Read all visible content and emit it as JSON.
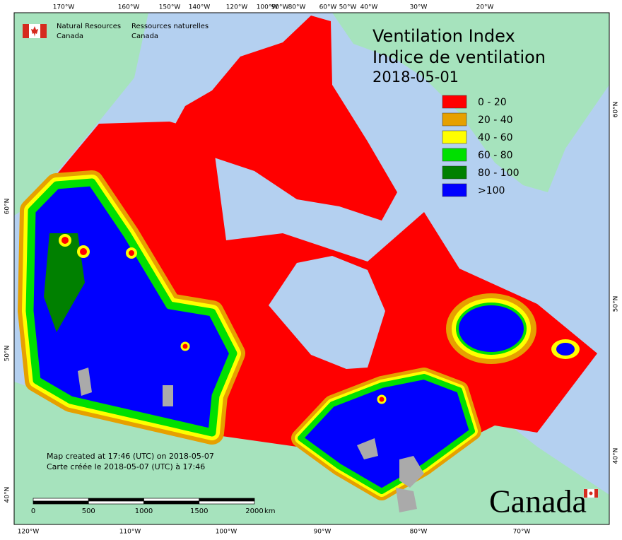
{
  "header": {
    "agency_en": "Natural Resources",
    "agency_en_2": "Canada",
    "agency_fr": "Ressources naturelles",
    "agency_fr_2": "Canada"
  },
  "title": {
    "line1": "Ventilation Index",
    "line2": "Indice de ventilation",
    "date": "2018-05-01"
  },
  "legend": [
    {
      "label": "0 - 20",
      "color": "#ff0000"
    },
    {
      "label": "20 - 40",
      "color": "#e6a000"
    },
    {
      "label": "40 - 60",
      "color": "#ffff00"
    },
    {
      "label": "60 - 80",
      "color": "#00e000"
    },
    {
      "label": "80 - 100",
      "color": "#008000"
    },
    {
      "label": ">100",
      "color": "#0000ff"
    }
  ],
  "credits": {
    "en": "Map created at 17:46 (UTC) on 2018-05-07",
    "fr": "Carte créée le 2018-05-07 (UTC) à 17:46"
  },
  "scale_bar": {
    "labels": [
      "0",
      "500",
      "1000",
      "1500",
      "2000"
    ],
    "unit": "km"
  },
  "graticule": {
    "top": [
      "170°W",
      "160°W",
      "150°W",
      "140°W",
      "120°W",
      "100°W",
      "90°W",
      "80°W",
      "60°W",
      "50°W",
      "40°W",
      "30°W",
      "20°W"
    ],
    "bottom": [
      "120°W",
      "110°W",
      "100°W",
      "90°W",
      "80°W",
      "70°W"
    ],
    "left": [
      "60°N",
      "50°N",
      "40°N"
    ],
    "right": [
      "60°N",
      "50°N",
      "40°N"
    ]
  },
  "wordmark": "Canada"
}
